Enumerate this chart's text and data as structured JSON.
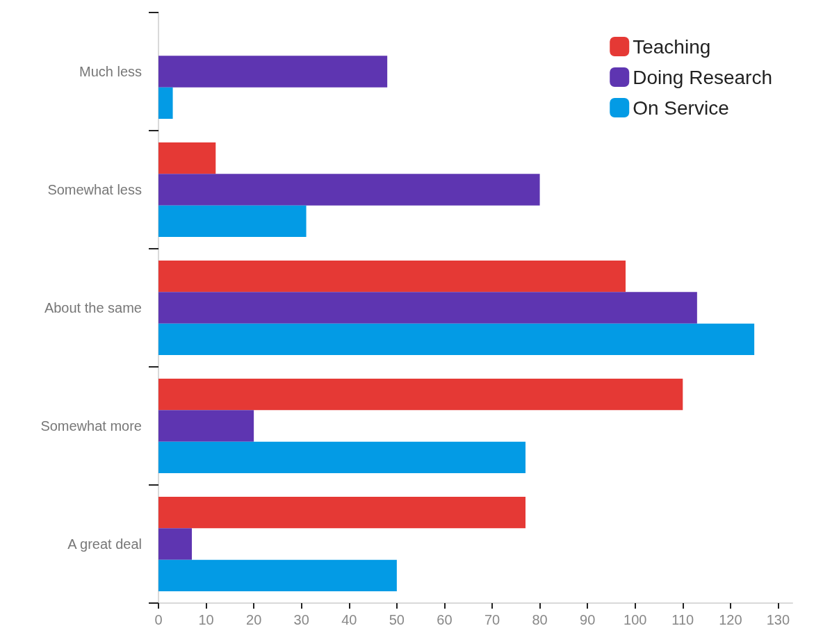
{
  "chart_data": {
    "type": "bar",
    "orientation": "horizontal",
    "categories": [
      "Much less",
      "Somewhat less",
      "About the same",
      "Somewhat more",
      "A great deal"
    ],
    "series": [
      {
        "name": "Teaching",
        "color": "#e53935",
        "values": [
          0,
          12,
          98,
          110,
          77
        ]
      },
      {
        "name": "Doing Research",
        "color": "#5e35b1",
        "values": [
          48,
          80,
          113,
          20,
          7
        ]
      },
      {
        "name": "On Service",
        "color": "#039be5",
        "values": [
          3,
          31,
          125,
          77,
          50
        ]
      }
    ],
    "xlim": [
      0,
      133
    ],
    "xticks": [
      0,
      10,
      20,
      30,
      40,
      50,
      60,
      70,
      80,
      90,
      100,
      110,
      120,
      130
    ],
    "grid": false,
    "legend": "top right"
  }
}
